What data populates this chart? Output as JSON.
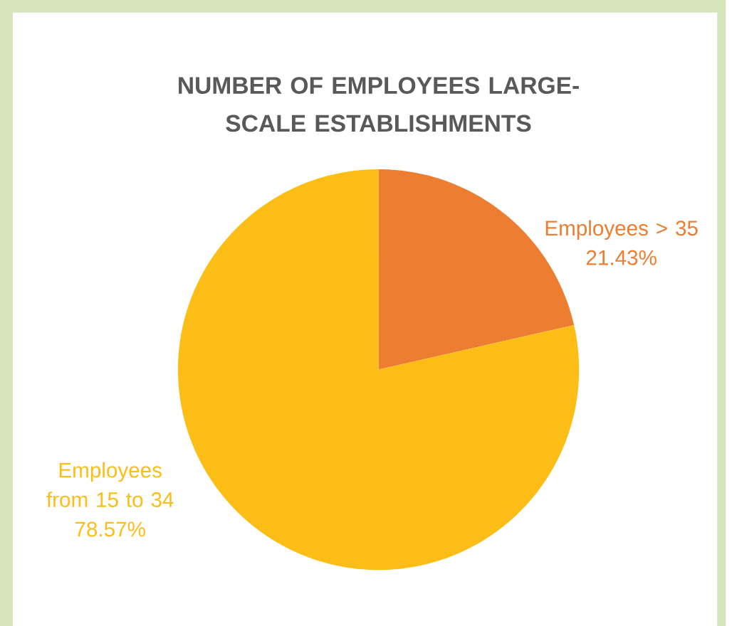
{
  "chart_data": {
    "type": "pie",
    "title": "NUMBER OF EMPLOYEES LARGE-SCALE ESTABLISHMENTS",
    "categories": [
      "Employees > 35",
      "Employees from 15 to 34"
    ],
    "values": [
      21.43,
      78.57
    ],
    "colors": [
      "#ed7d31",
      "#fcbe16"
    ],
    "value_labels": [
      "21.43%",
      "78.57%"
    ]
  }
}
